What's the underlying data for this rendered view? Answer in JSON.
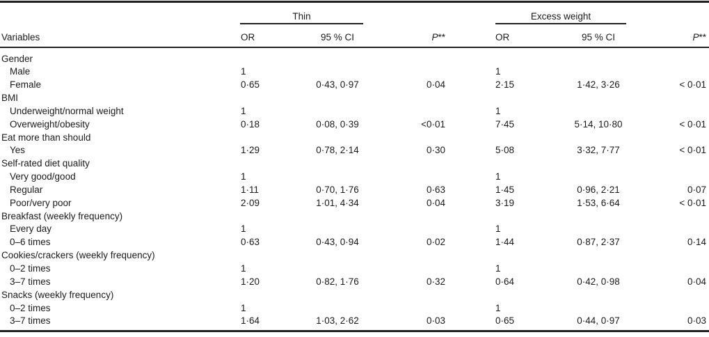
{
  "colors": {
    "background": "#ffffff",
    "text": "#1a1a1a",
    "rule": "#1f1f1f"
  },
  "table": {
    "column_groups": {
      "thin_label": "Thin",
      "excess_label": "Excess weight"
    },
    "col_headers": {
      "variables": "Variables",
      "thin_or": "OR",
      "thin_ci": "95 % CI",
      "thin_p": "P",
      "thin_p_marker": "**",
      "excess_or": "OR",
      "excess_ci": "95 % CI",
      "excess_p": "P",
      "excess_p_marker": "**"
    },
    "rows": [
      {
        "label": "Gender",
        "indent": false,
        "thin_or": "",
        "thin_ci": "",
        "thin_p": "",
        "excess_or": "",
        "excess_ci": "",
        "excess_p": ""
      },
      {
        "label": "Male",
        "indent": true,
        "thin_or": "1",
        "thin_ci": "",
        "thin_p": "",
        "excess_or": "1",
        "excess_ci": "",
        "excess_p": ""
      },
      {
        "label": "Female",
        "indent": true,
        "thin_or": "0·65",
        "thin_ci": "0·43, 0·97",
        "thin_p": "0·04",
        "excess_or": "2·15",
        "excess_ci": "1·42, 3·26",
        "excess_p": "< 0·01"
      },
      {
        "label": "BMI",
        "indent": false,
        "thin_or": "",
        "thin_ci": "",
        "thin_p": "",
        "excess_or": "",
        "excess_ci": "",
        "excess_p": ""
      },
      {
        "label": "Underweight/normal weight",
        "indent": true,
        "thin_or": "1",
        "thin_ci": "",
        "thin_p": "",
        "excess_or": "1",
        "excess_ci": "",
        "excess_p": ""
      },
      {
        "label": "Overweight/obesity",
        "indent": true,
        "thin_or": "0·18",
        "thin_ci": "0·08, 0·39",
        "thin_p": "<0·01",
        "excess_or": "7·45",
        "excess_ci": "5·14, 10·80",
        "excess_p": "< 0·01"
      },
      {
        "label": "Eat more than should",
        "indent": false,
        "thin_or": "",
        "thin_ci": "",
        "thin_p": "",
        "excess_or": "",
        "excess_ci": "",
        "excess_p": ""
      },
      {
        "label": "Yes",
        "indent": true,
        "thin_or": "1·29",
        "thin_ci": "0·78, 2·14",
        "thin_p": "0·30",
        "excess_or": "5·08",
        "excess_ci": "3·32, 7·77",
        "excess_p": "< 0·01"
      },
      {
        "label": "Self-rated diet quality",
        "indent": false,
        "thin_or": "",
        "thin_ci": "",
        "thin_p": "",
        "excess_or": "",
        "excess_ci": "",
        "excess_p": ""
      },
      {
        "label": "Very good/good",
        "indent": true,
        "thin_or": "1",
        "thin_ci": "",
        "thin_p": "",
        "excess_or": "1",
        "excess_ci": "",
        "excess_p": ""
      },
      {
        "label": "Regular",
        "indent": true,
        "thin_or": "1·11",
        "thin_ci": "0·70, 1·76",
        "thin_p": "0·63",
        "excess_or": "1·45",
        "excess_ci": "0·96, 2·21",
        "excess_p": "0·07"
      },
      {
        "label": "Poor/very poor",
        "indent": true,
        "thin_or": "2·09",
        "thin_ci": "1·01, 4·34",
        "thin_p": "0·04",
        "excess_or": "3·19",
        "excess_ci": "1·53, 6·64",
        "excess_p": "< 0·01"
      },
      {
        "label": "Breakfast (weekly frequency)",
        "indent": false,
        "thin_or": "",
        "thin_ci": "",
        "thin_p": "",
        "excess_or": "",
        "excess_ci": "",
        "excess_p": ""
      },
      {
        "label": "Every day",
        "indent": true,
        "thin_or": "1",
        "thin_ci": "",
        "thin_p": "",
        "excess_or": "1",
        "excess_ci": "",
        "excess_p": ""
      },
      {
        "label": "0–6 times",
        "indent": true,
        "thin_or": "0·63",
        "thin_ci": "0·43, 0·94",
        "thin_p": "0·02",
        "excess_or": "1·44",
        "excess_ci": "0·87, 2·37",
        "excess_p": "0·14"
      },
      {
        "label": "Cookies/crackers (weekly frequency)",
        "indent": false,
        "thin_or": "",
        "thin_ci": "",
        "thin_p": "",
        "excess_or": "",
        "excess_ci": "",
        "excess_p": ""
      },
      {
        "label": "0–2 times",
        "indent": true,
        "thin_or": "1",
        "thin_ci": "",
        "thin_p": "",
        "excess_or": "1",
        "excess_ci": "",
        "excess_p": ""
      },
      {
        "label": "3–7 times",
        "indent": true,
        "thin_or": "1·20",
        "thin_ci": "0·82, 1·76",
        "thin_p": "0·32",
        "excess_or": "0·64",
        "excess_ci": "0·42, 0·98",
        "excess_p": "0·04"
      },
      {
        "label": "Snacks (weekly frequency)",
        "indent": false,
        "thin_or": "",
        "thin_ci": "",
        "thin_p": "",
        "excess_or": "",
        "excess_ci": "",
        "excess_p": ""
      },
      {
        "label": "0–2 times",
        "indent": true,
        "thin_or": "1",
        "thin_ci": "",
        "thin_p": "",
        "excess_or": "1",
        "excess_ci": "",
        "excess_p": ""
      },
      {
        "label": "3–7 times",
        "indent": true,
        "thin_or": "1·64",
        "thin_ci": "1·03, 2·62",
        "thin_p": "0·03",
        "excess_or": "0·65",
        "excess_ci": "0·44, 0·97",
        "excess_p": "0·03"
      }
    ]
  }
}
